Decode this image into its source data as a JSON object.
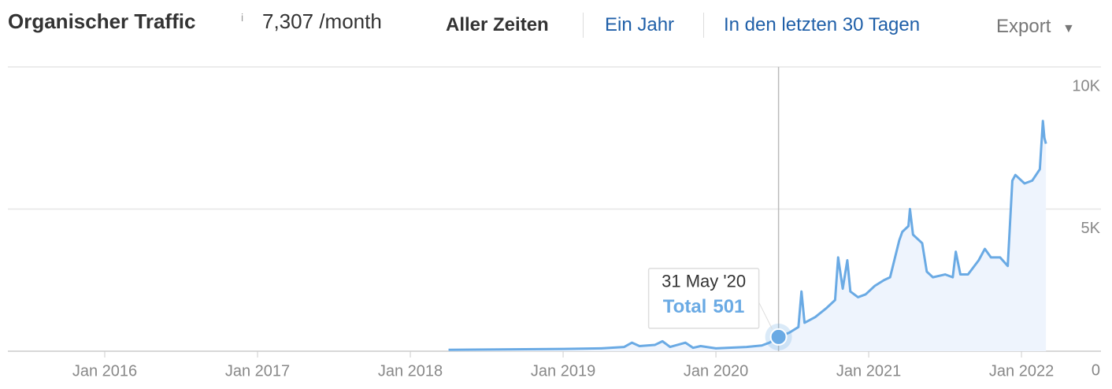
{
  "header": {
    "title": "Organischer Traffic",
    "info": "i",
    "summary_value": "7,307",
    "summary_unit": "/month",
    "tabs": [
      "Aller Zeiten",
      "Ein Jahr",
      "In den letzten 30 Tagen"
    ],
    "export": "Export"
  },
  "chart_data": {
    "type": "line",
    "color": "#6aaae4",
    "fill": "#eef4fd",
    "grid": true,
    "x": [
      2018.25,
      2018.5,
      2018.75,
      2019.0,
      2019.25,
      2019.4,
      2019.45,
      2019.5,
      2019.6,
      2019.65,
      2019.7,
      2019.8,
      2019.85,
      2019.9,
      2020.0,
      2020.2,
      2020.3,
      2020.35,
      2020.41,
      2020.48,
      2020.54,
      2020.56,
      2020.58,
      2020.65,
      2020.72,
      2020.78,
      2020.8,
      2020.83,
      2020.86,
      2020.88,
      2020.93,
      2020.98,
      2021.04,
      2021.1,
      2021.14,
      2021.2,
      2021.22,
      2021.26,
      2021.27,
      2021.29,
      2021.35,
      2021.38,
      2021.42,
      2021.5,
      2021.55,
      2021.57,
      2021.6,
      2021.65,
      2021.72,
      2021.76,
      2021.8,
      2021.86,
      2021.91,
      2021.94,
      2021.96,
      2022.02,
      2022.07,
      2022.12,
      2022.14,
      2022.15,
      2022.16
    ],
    "values": [
      50,
      60,
      70,
      80,
      100,
      150,
      300,
      180,
      220,
      350,
      150,
      300,
      120,
      180,
      100,
      150,
      200,
      300,
      501,
      650,
      850,
      2100,
      1000,
      1200,
      1500,
      1800,
      3300,
      2200,
      3200,
      2100,
      1900,
      2000,
      2300,
      2500,
      2600,
      3900,
      4200,
      4400,
      5000,
      4100,
      3800,
      2800,
      2600,
      2700,
      2600,
      3500,
      2700,
      2700,
      3200,
      3600,
      3300,
      3300,
      3000,
      6000,
      6200,
      5900,
      6000,
      6400,
      8100,
      7500,
      7300
    ],
    "xlim": [
      2015.366,
      2022.247
    ],
    "xticks": [
      {
        "value": 2016,
        "label": "Jan 2016"
      },
      {
        "value": 2017,
        "label": "Jan 2017"
      },
      {
        "value": 2018,
        "label": "Jan 2018"
      },
      {
        "value": 2019,
        "label": "Jan 2019"
      },
      {
        "value": 2020,
        "label": "Jan 2020"
      },
      {
        "value": 2021,
        "label": "Jan 2021"
      },
      {
        "value": 2022,
        "label": "Jan 2022"
      }
    ],
    "ylim": [
      0,
      10000
    ],
    "yticks": [
      0,
      {
        "value": 5000,
        "label": "5K"
      },
      {
        "value": 10000,
        "label": "10K"
      }
    ],
    "tooltip": {
      "x": 2020.41,
      "date": "31 May '20",
      "label": "Total",
      "value": 501
    }
  }
}
